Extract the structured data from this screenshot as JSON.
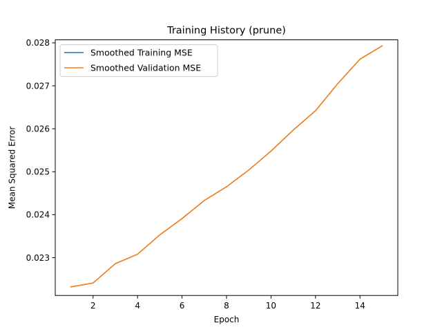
{
  "chart_data": {
    "type": "line",
    "title": "Training History (prune)",
    "xlabel": "Epoch",
    "ylabel": "Mean Squared Error",
    "xlim": [
      0.3,
      15.7
    ],
    "ylim": [
      0.02212,
      0.02807
    ],
    "xticks": [
      2,
      4,
      6,
      8,
      10,
      12,
      14
    ],
    "yticks": [
      0.023,
      0.024,
      0.025,
      0.026,
      0.027,
      0.028
    ],
    "ytick_labels": [
      "0.023",
      "0.024",
      "0.025",
      "0.026",
      "0.027",
      "0.028"
    ],
    "grid": false,
    "legend_position": "top-left",
    "x": [
      1,
      2,
      3,
      4,
      5,
      6,
      7,
      8,
      9,
      10,
      11,
      12,
      13,
      14,
      15
    ],
    "series": [
      {
        "name": "Smoothed Training MSE",
        "color": "#1f77b4",
        "values": [
          0.02232,
          0.02241,
          0.02286,
          0.02308,
          0.02353,
          0.02391,
          0.02433,
          0.02465,
          0.02504,
          0.02548,
          0.02597,
          0.02642,
          0.02705,
          0.02762,
          0.02793
        ]
      },
      {
        "name": "Smoothed Validation MSE",
        "color": "#ff7f0e",
        "values": [
          0.02232,
          0.02241,
          0.02286,
          0.02308,
          0.02353,
          0.02391,
          0.02433,
          0.02465,
          0.02504,
          0.02548,
          0.02597,
          0.02642,
          0.02705,
          0.02762,
          0.02793
        ]
      }
    ]
  }
}
